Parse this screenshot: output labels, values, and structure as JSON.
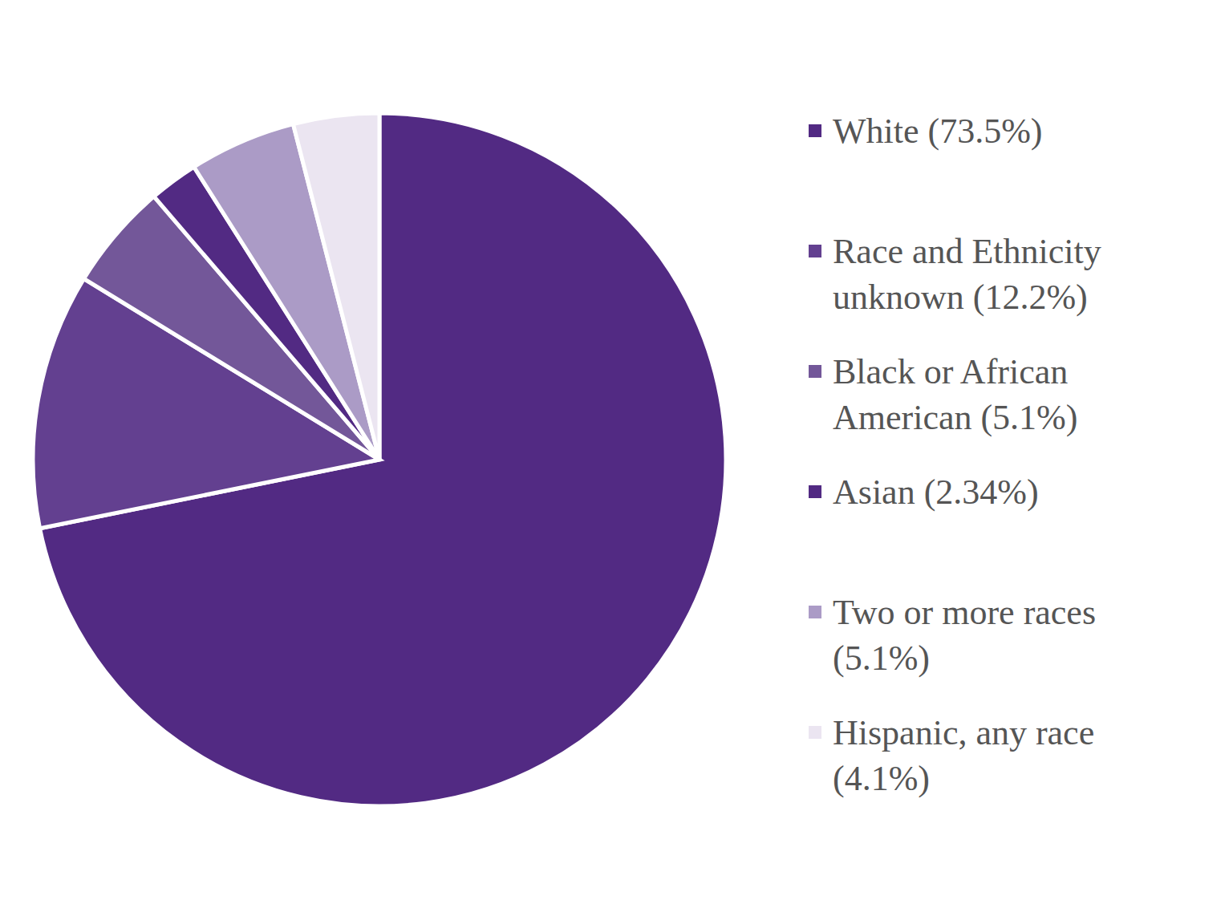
{
  "chart_data": {
    "type": "pie",
    "categories": [
      "White (73.5%)",
      "Race and Ethnicity unknown (12.2%)",
      "Black or African American (5.1%)",
      "Asian (2.34%)",
      "Two or more races (5.1%)",
      "Hispanic, any race (4.1%)"
    ],
    "values": [
      73.5,
      12.2,
      5.1,
      2.34,
      5.1,
      4.1
    ],
    "colors": [
      "#522a83",
      "#634090",
      "#735799",
      "#522a83",
      "#ab9bc6",
      "#ebe5f1"
    ],
    "legend": "right"
  }
}
